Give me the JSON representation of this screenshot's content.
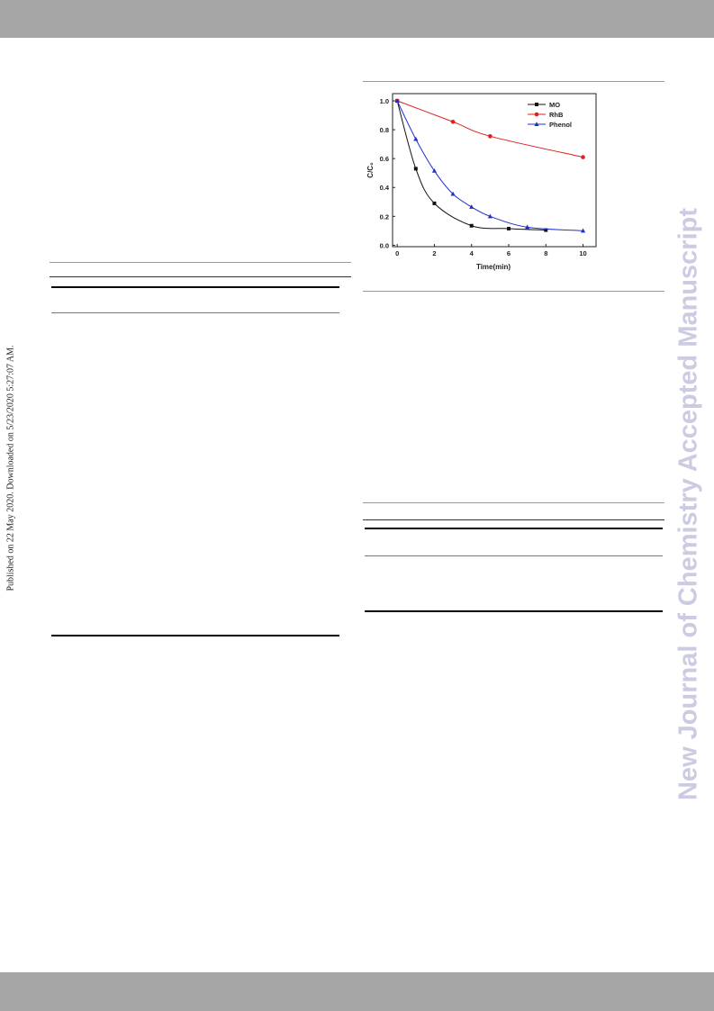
{
  "sidebar": "Published on 22 May 2020. Downloaded on 5/23/2020 5:27:07 AM.",
  "watermark": "New Journal of Chemistry Accepted Manuscript",
  "chart_data": {
    "type": "line",
    "x_label": "Time(min)",
    "y_label": "C/C₀",
    "xlim": [
      -0.25,
      10.7
    ],
    "ylim": [
      -0.01,
      1.05
    ],
    "xticks": [
      0,
      2,
      4,
      6,
      8,
      10
    ],
    "yticks": [
      {
        "value": 0,
        "label": "0.0"
      },
      {
        "value": 0.2,
        "label": "0.2"
      },
      {
        "value": 0.4,
        "label": "0.4"
      },
      {
        "value": 0.6,
        "label": "0.6"
      },
      {
        "value": 0.8,
        "label": "0.8"
      },
      {
        "value": 1,
        "label": "1.0"
      }
    ],
    "legend": "upper right",
    "series": [
      {
        "name": "MO",
        "color": "#111111",
        "marker": "square",
        "x": [
          0,
          1,
          2,
          4,
          6,
          8
        ],
        "values": [
          1.0,
          0.53,
          0.29,
          0.135,
          0.115,
          0.105
        ]
      },
      {
        "name": "RhB",
        "color": "#e02020",
        "marker": "circle",
        "x": [
          0,
          3,
          5,
          10
        ],
        "values": [
          1.0,
          0.855,
          0.755,
          0.61
        ]
      },
      {
        "name": "Phenol",
        "color": "#2030d0",
        "marker": "triangle",
        "x": [
          0,
          1,
          2,
          3,
          4,
          5,
          7,
          10
        ],
        "values": [
          1.0,
          0.735,
          0.515,
          0.355,
          0.265,
          0.2,
          0.125,
          0.1
        ]
      }
    ]
  }
}
